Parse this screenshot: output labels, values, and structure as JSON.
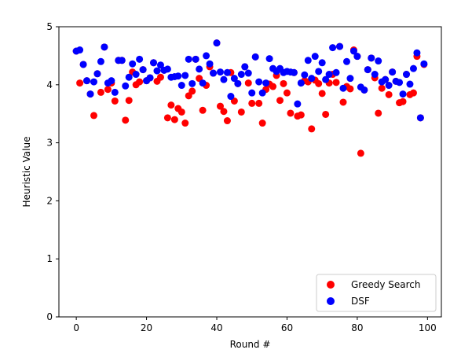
{
  "chart_data": {
    "type": "scatter",
    "title": "",
    "xlabel": "Round #",
    "ylabel": "Heuristic Value",
    "xlim": [
      -4.95,
      103.95
    ],
    "ylim": [
      0,
      5
    ],
    "xticks": [
      0,
      20,
      40,
      60,
      80,
      100
    ],
    "yticks": [
      0,
      1,
      2,
      3,
      4,
      5
    ],
    "grid": false,
    "legend_position": "lower-right",
    "series": [
      {
        "name": "Greedy Search",
        "color": "#ff0000",
        "x": [
          0,
          1,
          2,
          3,
          4,
          5,
          6,
          7,
          8,
          9,
          10,
          11,
          12,
          13,
          14,
          15,
          16,
          17,
          18,
          19,
          20,
          21,
          22,
          23,
          24,
          25,
          26,
          27,
          28,
          29,
          30,
          31,
          32,
          33,
          34,
          35,
          36,
          37,
          38,
          39,
          40,
          41,
          42,
          43,
          44,
          45,
          46,
          47,
          48,
          49,
          50,
          51,
          52,
          53,
          54,
          55,
          56,
          57,
          58,
          59,
          60,
          61,
          62,
          63,
          64,
          65,
          66,
          67,
          68,
          69,
          70,
          71,
          72,
          73,
          74,
          75,
          76,
          77,
          78,
          79,
          80,
          81,
          82,
          83,
          84,
          85,
          86,
          87,
          88,
          89,
          90,
          91,
          92,
          93,
          94,
          95,
          96,
          97,
          98,
          99
        ],
        "y": [
          4.58,
          4.03,
          4.35,
          4.07,
          3.84,
          3.47,
          4.19,
          3.87,
          4.65,
          3.92,
          4.03,
          3.72,
          4.42,
          4.42,
          3.39,
          3.73,
          4.22,
          4.0,
          4.05,
          4.26,
          4.07,
          4.12,
          4.38,
          4.06,
          4.13,
          4.25,
          3.43,
          3.65,
          3.4,
          3.59,
          3.53,
          3.34,
          3.81,
          3.89,
          4.44,
          4.11,
          3.56,
          3.99,
          4.31,
          4.2,
          4.72,
          3.63,
          3.54,
          3.38,
          4.21,
          3.72,
          4.02,
          3.53,
          4.31,
          4.03,
          3.68,
          4.48,
          3.68,
          3.34,
          3.92,
          4.01,
          3.97,
          4.16,
          3.73,
          4.02,
          3.86,
          3.51,
          4.21,
          3.46,
          3.48,
          4.07,
          4.05,
          3.24,
          4.08,
          4.02,
          3.85,
          3.49,
          4.03,
          4.18,
          4.04,
          4.66,
          3.7,
          3.97,
          3.93,
          4.6,
          4.49,
          2.82,
          3.91,
          4.26,
          4.46,
          4.12,
          3.51,
          3.94,
          4.09,
          3.83,
          4.22,
          4.06,
          3.69,
          3.71,
          4.18,
          3.83,
          3.86,
          4.49,
          3.43,
          4.35
        ]
      },
      {
        "name": "DSF",
        "color": "#0000ff",
        "x": [
          0,
          1,
          2,
          3,
          4,
          5,
          6,
          7,
          8,
          9,
          10,
          11,
          12,
          13,
          14,
          15,
          16,
          17,
          18,
          19,
          20,
          21,
          22,
          23,
          24,
          25,
          26,
          27,
          28,
          29,
          30,
          31,
          32,
          33,
          34,
          35,
          36,
          37,
          38,
          39,
          40,
          41,
          42,
          43,
          44,
          45,
          46,
          47,
          48,
          49,
          50,
          51,
          52,
          53,
          54,
          55,
          56,
          57,
          58,
          59,
          60,
          61,
          62,
          63,
          64,
          65,
          66,
          67,
          68,
          69,
          70,
          71,
          72,
          73,
          74,
          75,
          76,
          77,
          78,
          79,
          80,
          81,
          82,
          83,
          84,
          85,
          86,
          87,
          88,
          89,
          90,
          91,
          92,
          93,
          94,
          95,
          96,
          97,
          98,
          99
        ],
        "y": [
          4.58,
          4.6,
          4.35,
          4.07,
          3.84,
          4.05,
          4.19,
          4.4,
          4.65,
          4.03,
          4.07,
          3.87,
          4.42,
          4.42,
          3.98,
          4.13,
          4.36,
          4.18,
          4.44,
          4.26,
          4.07,
          4.12,
          4.38,
          4.24,
          4.34,
          4.25,
          4.27,
          4.13,
          4.14,
          4.15,
          3.99,
          4.16,
          4.44,
          4.02,
          4.44,
          4.27,
          4.03,
          4.5,
          4.36,
          4.2,
          4.72,
          4.22,
          4.09,
          4.21,
          3.8,
          4.11,
          4.02,
          4.18,
          4.31,
          4.2,
          3.86,
          4.48,
          4.05,
          3.86,
          4.03,
          4.45,
          4.28,
          4.23,
          4.28,
          4.21,
          4.23,
          4.22,
          4.21,
          3.67,
          4.03,
          4.17,
          4.42,
          4.11,
          4.49,
          4.23,
          4.38,
          4.09,
          4.18,
          4.64,
          4.21,
          4.66,
          3.94,
          4.4,
          4.11,
          4.58,
          4.49,
          3.96,
          3.91,
          4.26,
          4.46,
          4.18,
          4.41,
          4.05,
          4.09,
          3.99,
          4.22,
          4.06,
          4.04,
          3.84,
          4.18,
          4.01,
          4.28,
          4.55,
          3.43,
          4.36
        ]
      }
    ]
  }
}
